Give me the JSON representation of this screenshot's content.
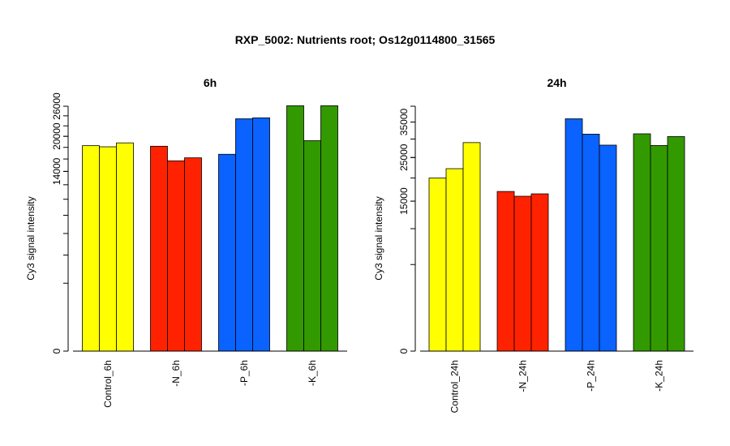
{
  "title": "RXP_5002: Nutrients root; Os12g0114800_31565",
  "chart_data": [
    {
      "type": "bar",
      "title": "6h",
      "ylabel": "Cy3 signal intensity",
      "xlabel": "",
      "ylim": [
        0,
        26000
      ],
      "yticks": [
        0,
        14000,
        20000,
        26000
      ],
      "y_scale": "sqrt",
      "categories": [
        "Control_6h",
        "-N_6h",
        "-P_6h",
        "-K_6h"
      ],
      "group_colors": [
        "#ffff00",
        "#ff2200",
        "#0a62ff",
        "#339900"
      ],
      "values": [
        [
          18300,
          18100,
          18800
        ],
        [
          18200,
          15700,
          16200
        ],
        [
          16800,
          23400,
          23600
        ],
        [
          26100,
          19200,
          26100
        ]
      ]
    },
    {
      "type": "bar",
      "title": "24h",
      "ylabel": "Cy3 signal intensity",
      "xlabel": "",
      "ylim": [
        0,
        40000
      ],
      "yticks": [
        0,
        15000,
        25000,
        35000
      ],
      "y_scale": "sqrt",
      "categories": [
        "Control_24h",
        "-N_24h",
        "-P_24h",
        "-K_24h"
      ],
      "group_colors": [
        "#ffff00",
        "#ff2200",
        "#0a62ff",
        "#339900"
      ],
      "values": [
        [
          20000,
          22200,
          29000
        ],
        [
          17000,
          16000,
          16500
        ],
        [
          36000,
          31400,
          28300
        ],
        [
          31500,
          28200,
          30700
        ]
      ]
    }
  ]
}
